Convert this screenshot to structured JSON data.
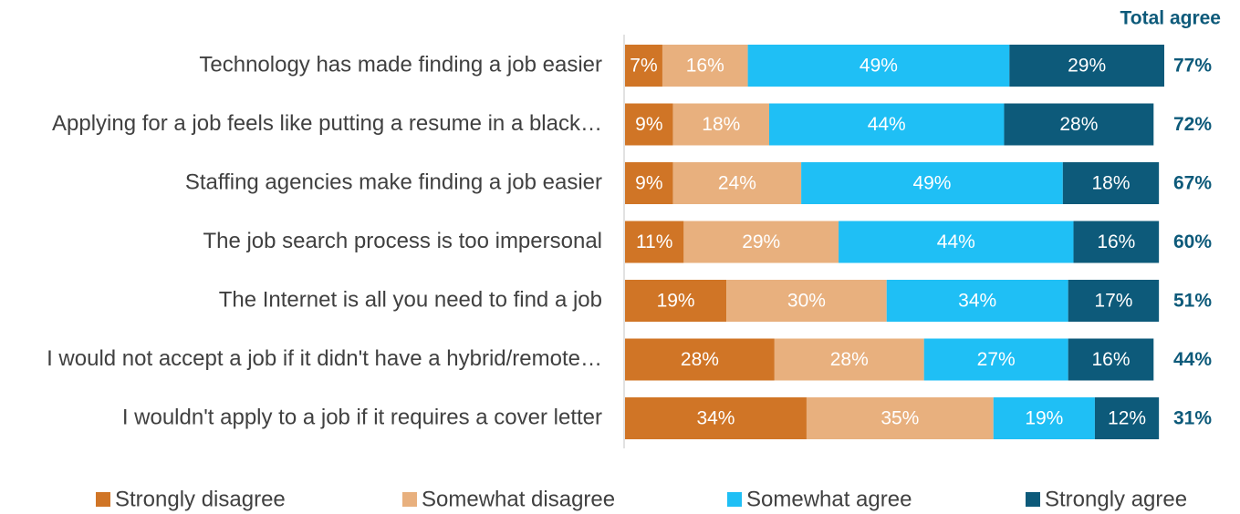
{
  "chart_data": {
    "type": "stacked-bar-horizontal",
    "categories": [
      "Technology has made finding a job easier",
      "Applying for a job feels like putting a resume in a black…",
      "Staffing agencies make finding a job easier",
      "The job search process is too impersonal",
      "The Internet is all you need to find a job",
      "I would not accept a job if it didn't have a hybrid/remote…",
      "I wouldn't apply to a job if it requires a cover letter"
    ],
    "series": [
      {
        "name": "Strongly disagree",
        "color": "#d07526",
        "values": [
          7,
          9,
          9,
          11,
          19,
          28,
          34
        ],
        "value_labels": [
          "7%",
          "9%",
          "9%",
          "11%",
          "19%",
          "28%",
          "34%"
        ]
      },
      {
        "name": "Somewhat disagree",
        "color": "#e8b07e",
        "values": [
          16,
          18,
          24,
          29,
          30,
          28,
          35
        ],
        "value_labels": [
          "16%",
          "18%",
          "24%",
          "29%",
          "30%",
          "28%",
          "35%"
        ]
      },
      {
        "name": "Somewhat agree",
        "color": "#1fbff5",
        "values": [
          49,
          44,
          49,
          44,
          34,
          27,
          19
        ],
        "value_labels": [
          "49%",
          "44%",
          "49%",
          "44%",
          "34%",
          "27%",
          "19%"
        ]
      },
      {
        "name": "Strongly agree",
        "color": "#0d5a7a",
        "values": [
          29,
          28,
          18,
          16,
          17,
          16,
          12
        ],
        "value_labels": [
          "29%",
          "28%",
          "18%",
          "16%",
          "17%",
          "16%",
          "12%"
        ]
      }
    ],
    "total": {
      "title": "Total agree",
      "color": "#0d5a7a",
      "values": [
        77,
        72,
        67,
        60,
        51,
        44,
        31
      ],
      "value_labels": [
        "77%",
        "72%",
        "67%",
        "60%",
        "51%",
        "44%",
        "31%"
      ]
    }
  }
}
